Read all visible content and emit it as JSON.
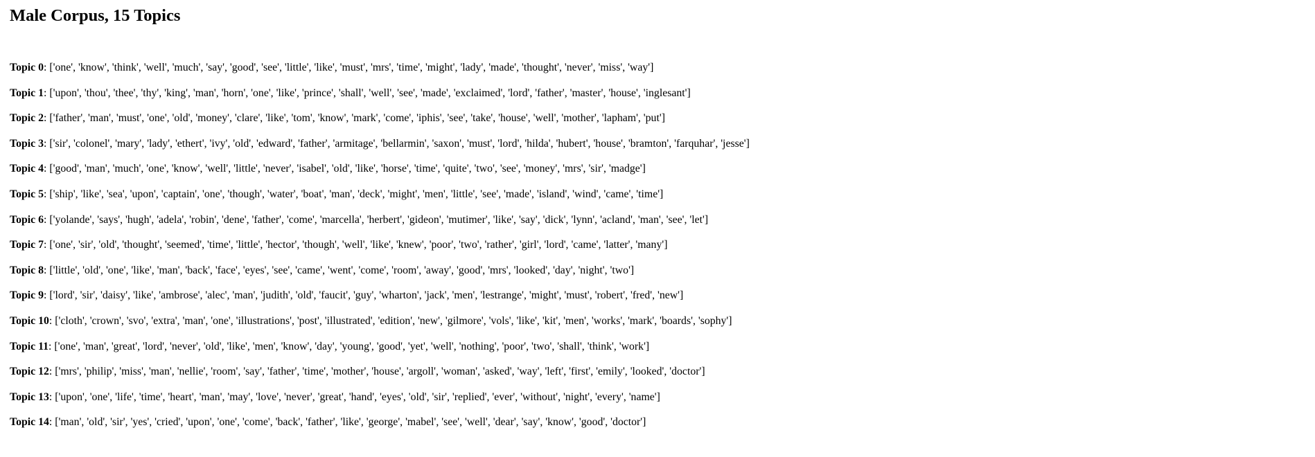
{
  "title": "Male Corpus, 15 Topics",
  "separator": ": ",
  "topics": [
    {
      "label": "Topic 0",
      "words": "['one', 'know', 'think', 'well', 'much', 'say', 'good', 'see', 'little', 'like', 'must', 'mrs', 'time', 'might', 'lady', 'made', 'thought', 'never', 'miss', 'way']"
    },
    {
      "label": "Topic 1",
      "words": "['upon', 'thou', 'thee', 'thy', 'king', 'man', 'horn', 'one', 'like', 'prince', 'shall', 'well', 'see', 'made', 'exclaimed', 'lord', 'father', 'master', 'house', 'inglesant']"
    },
    {
      "label": "Topic 2",
      "words": "['father', 'man', 'must', 'one', 'old', 'money', 'clare', 'like', 'tom', 'know', 'mark', 'come', 'iphis', 'see', 'take', 'house', 'well', 'mother', 'lapham', 'put']"
    },
    {
      "label": "Topic 3",
      "words": "['sir', 'colonel', 'mary', 'lady', 'ethert', 'ivy', 'old', 'edward', 'father', 'armitage', 'bellarmin', 'saxon', 'must', 'lord', 'hilda', 'hubert', 'house', 'bramton', 'farquhar', 'jesse']"
    },
    {
      "label": "Topic 4",
      "words": "['good', 'man', 'much', 'one', 'know', 'well', 'little', 'never', 'isabel', 'old', 'like', 'horse', 'time', 'quite', 'two', 'see', 'money', 'mrs', 'sir', 'madge']"
    },
    {
      "label": "Topic 5",
      "words": "['ship', 'like', 'sea', 'upon', 'captain', 'one', 'though', 'water', 'boat', 'man', 'deck', 'might', 'men', 'little', 'see', 'made', 'island', 'wind', 'came', 'time']"
    },
    {
      "label": "Topic 6",
      "words": "['yolande', 'says', 'hugh', 'adela', 'robin', 'dene', 'father', 'come', 'marcella', 'herbert', 'gideon', 'mutimer', 'like', 'say', 'dick', 'lynn', 'acland', 'man', 'see', 'let']"
    },
    {
      "label": "Topic 7",
      "words": "['one', 'sir', 'old', 'thought', 'seemed', 'time', 'little', 'hector', 'though', 'well', 'like', 'knew', 'poor', 'two', 'rather', 'girl', 'lord', 'came', 'latter', 'many']"
    },
    {
      "label": "Topic 8",
      "words": "['little', 'old', 'one', 'like', 'man', 'back', 'face', 'eyes', 'see', 'came', 'went', 'come', 'room', 'away', 'good', 'mrs', 'looked', 'day', 'night', 'two']"
    },
    {
      "label": "Topic 9",
      "words": "['lord', 'sir', 'daisy', 'like', 'ambrose', 'alec', 'man', 'judith', 'old', 'faucit', 'guy', 'wharton', 'jack', 'men', 'lestrange', 'might', 'must', 'robert', 'fred', 'new']"
    },
    {
      "label": "Topic 10",
      "words": "['cloth', 'crown', 'svo', 'extra', 'man', 'one', 'illustrations', 'post', 'illustrated', 'edition', 'new', 'gilmore', 'vols', 'like', 'kit', 'men', 'works', 'mark', 'boards', 'sophy']"
    },
    {
      "label": "Topic 11",
      "words": "['one', 'man', 'great', 'lord', 'never', 'old', 'like', 'men', 'know', 'day', 'young', 'good', 'yet', 'well', 'nothing', 'poor', 'two', 'shall', 'think', 'work']"
    },
    {
      "label": "Topic 12",
      "words": "['mrs', 'philip', 'miss', 'man', 'nellie', 'room', 'say', 'father', 'time', 'mother', 'house', 'argoll', 'woman', 'asked', 'way', 'left', 'first', 'emily', 'looked', 'doctor']"
    },
    {
      "label": "Topic 13",
      "words": "['upon', 'one', 'life', 'time', 'heart', 'man', 'may', 'love', 'never', 'great', 'hand', 'eyes', 'old', 'sir', 'replied', 'ever', 'without', 'night', 'every', 'name']"
    },
    {
      "label": "Topic 14",
      "words": "['man', 'old', 'sir', 'yes', 'cried', 'upon', 'one', 'come', 'back', 'father', 'like', 'george', 'mabel', 'see', 'well', 'dear', 'say', 'know', 'good', 'doctor']"
    }
  ]
}
